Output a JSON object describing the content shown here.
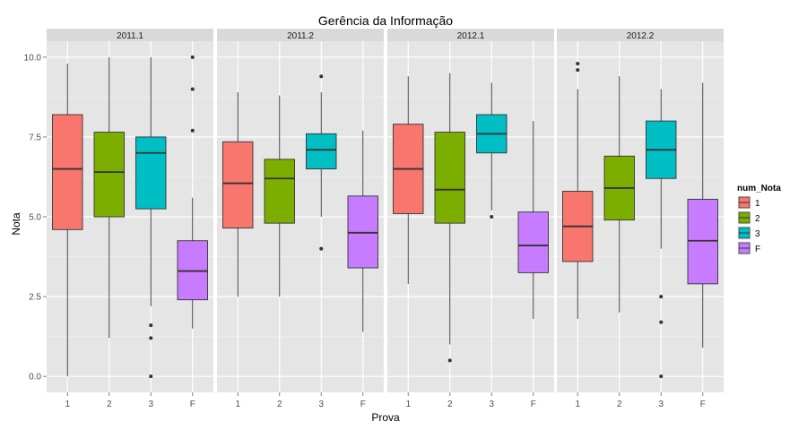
{
  "chart_data": {
    "type": "boxplot",
    "title": "Gerência da Informação",
    "xlabel": "Prova",
    "ylabel": "Nota",
    "ylim": [
      -0.5,
      10.5
    ],
    "yticks": [
      "0.0",
      "2.5",
      "5.0",
      "7.5",
      "10.0"
    ],
    "ytick_values": [
      0,
      2.5,
      5,
      7.5,
      10
    ],
    "categories": [
      "1",
      "2",
      "3",
      "F"
    ],
    "grid": true,
    "legend": {
      "title": "num_Nota",
      "position": "right",
      "entries": [
        {
          "label": "1",
          "color": "#F8766D"
        },
        {
          "label": "2",
          "color": "#7CAE00"
        },
        {
          "label": "3",
          "color": "#00BFC4"
        },
        {
          "label": "F",
          "color": "#C77CFF"
        }
      ]
    },
    "facets": [
      {
        "name": "2011.1",
        "boxes": [
          {
            "category": "1",
            "min": 0.0,
            "q1": 4.6,
            "median": 6.5,
            "q3": 8.2,
            "max": 9.8,
            "outliers": []
          },
          {
            "category": "2",
            "min": 1.2,
            "q1": 5.0,
            "median": 6.4,
            "q3": 7.65,
            "max": 10.0,
            "outliers": []
          },
          {
            "category": "3",
            "min": 2.2,
            "q1": 5.25,
            "median": 7.0,
            "q3": 7.5,
            "max": 10.0,
            "outliers": [
              1.6,
              1.2,
              0.0
            ]
          },
          {
            "category": "F",
            "min": 1.5,
            "q1": 2.4,
            "median": 3.3,
            "q3": 4.25,
            "max": 5.6,
            "outliers": [
              10.0,
              9.0,
              7.7
            ]
          }
        ]
      },
      {
        "name": "2011.2",
        "boxes": [
          {
            "category": "1",
            "min": 2.5,
            "q1": 4.65,
            "median": 6.05,
            "q3": 7.35,
            "max": 8.9,
            "outliers": []
          },
          {
            "category": "2",
            "min": 2.5,
            "q1": 4.8,
            "median": 6.2,
            "q3": 6.8,
            "max": 8.8,
            "outliers": []
          },
          {
            "category": "3",
            "min": 5.0,
            "q1": 6.5,
            "median": 7.1,
            "q3": 7.6,
            "max": 8.9,
            "outliers": [
              9.4,
              4.0
            ]
          },
          {
            "category": "F",
            "min": 1.4,
            "q1": 3.4,
            "median": 4.5,
            "q3": 5.65,
            "max": 7.7,
            "outliers": []
          }
        ]
      },
      {
        "name": "2012.1",
        "boxes": [
          {
            "category": "1",
            "min": 2.9,
            "q1": 5.1,
            "median": 6.5,
            "q3": 7.9,
            "max": 9.4,
            "outliers": []
          },
          {
            "category": "2",
            "min": 1.0,
            "q1": 4.8,
            "median": 5.85,
            "q3": 7.65,
            "max": 9.5,
            "outliers": [
              0.5
            ]
          },
          {
            "category": "3",
            "min": 5.2,
            "q1": 7.0,
            "median": 7.6,
            "q3": 8.2,
            "max": 9.2,
            "outliers": [
              5.0
            ]
          },
          {
            "category": "F",
            "min": 1.8,
            "q1": 3.25,
            "median": 4.1,
            "q3": 5.15,
            "max": 8.0,
            "outliers": []
          }
        ]
      },
      {
        "name": "2012.2",
        "boxes": [
          {
            "category": "1",
            "min": 1.8,
            "q1": 3.6,
            "median": 4.7,
            "q3": 5.8,
            "max": 9.0,
            "outliers": [
              9.8,
              9.6
            ]
          },
          {
            "category": "2",
            "min": 2.0,
            "q1": 4.9,
            "median": 5.9,
            "q3": 6.9,
            "max": 9.4,
            "outliers": []
          },
          {
            "category": "3",
            "min": 4.0,
            "q1": 6.2,
            "median": 7.1,
            "q3": 8.0,
            "max": 9.0,
            "outliers": [
              2.5,
              1.7,
              0.0
            ]
          },
          {
            "category": "F",
            "min": 0.9,
            "q1": 2.9,
            "median": 4.25,
            "q3": 5.55,
            "max": 9.2,
            "outliers": []
          }
        ]
      }
    ]
  }
}
